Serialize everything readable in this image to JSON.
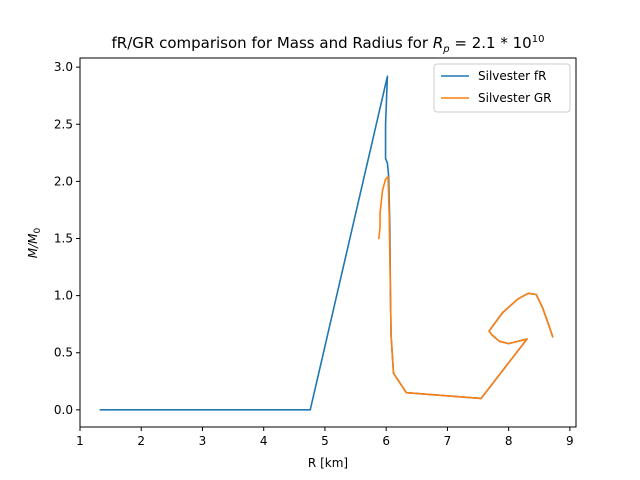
{
  "chart_data": {
    "type": "line",
    "title": "fR/GR comparison for Mass and Radius for ",
    "title_math": {
      "base": "R",
      "sub": "p",
      "rest": " = 2.1 * 10",
      "sup": "10"
    },
    "xlabel": "R [km]",
    "ylabel": {
      "base": "M/M",
      "sub": "0"
    },
    "xlim": [
      1.0,
      9.1
    ],
    "ylim": [
      -0.15,
      3.08
    ],
    "xticks": [
      1,
      2,
      3,
      4,
      5,
      6,
      7,
      8,
      9
    ],
    "xtick_labels": [
      "1",
      "2",
      "3",
      "4",
      "5",
      "6",
      "7",
      "8",
      "9"
    ],
    "yticks": [
      0.0,
      0.5,
      1.0,
      1.5,
      2.0,
      2.5,
      3.0
    ],
    "ytick_labels": [
      "0.0",
      "0.5",
      "1.0",
      "1.5",
      "2.0",
      "2.5",
      "3.0"
    ],
    "grid": false,
    "legend_position": "upper right",
    "series": [
      {
        "name": "Silvester fR",
        "color": "#1f77b4",
        "points": [
          [
            1.33,
            0.0
          ],
          [
            4.76,
            0.0
          ],
          [
            6.02,
            2.92
          ],
          [
            5.99,
            2.5
          ],
          [
            5.99,
            2.2
          ],
          [
            6.02,
            2.16
          ],
          [
            6.04,
            2.05
          ],
          [
            6.06,
            1.6
          ],
          [
            6.07,
            1.0
          ],
          [
            6.08,
            0.65
          ],
          [
            6.12,
            0.32
          ],
          [
            6.33,
            0.15
          ],
          [
            7.55,
            0.1
          ],
          [
            8.3,
            0.62
          ],
          [
            8.0,
            0.58
          ],
          [
            7.85,
            0.6
          ],
          [
            7.72,
            0.66
          ],
          [
            7.68,
            0.69
          ],
          [
            7.9,
            0.85
          ],
          [
            8.15,
            0.97
          ],
          [
            8.32,
            1.02
          ],
          [
            8.45,
            1.01
          ],
          [
            8.55,
            0.9
          ],
          [
            8.65,
            0.75
          ],
          [
            8.72,
            0.64
          ]
        ]
      },
      {
        "name": "Silvester GR",
        "color": "#ff7f0e",
        "points": [
          [
            5.88,
            1.5
          ],
          [
            5.9,
            1.6
          ],
          [
            5.9,
            1.72
          ],
          [
            5.94,
            1.92
          ],
          [
            5.99,
            2.02
          ],
          [
            6.03,
            2.04
          ],
          [
            6.05,
            1.7
          ],
          [
            6.07,
            1.0
          ],
          [
            6.08,
            0.65
          ],
          [
            6.12,
            0.32
          ],
          [
            6.33,
            0.15
          ],
          [
            7.55,
            0.1
          ],
          [
            8.3,
            0.62
          ],
          [
            8.0,
            0.58
          ],
          [
            7.85,
            0.6
          ],
          [
            7.72,
            0.66
          ],
          [
            7.68,
            0.69
          ],
          [
            7.9,
            0.85
          ],
          [
            8.15,
            0.97
          ],
          [
            8.32,
            1.02
          ],
          [
            8.45,
            1.01
          ],
          [
            8.55,
            0.9
          ],
          [
            8.65,
            0.75
          ],
          [
            8.72,
            0.64
          ]
        ]
      }
    ]
  }
}
